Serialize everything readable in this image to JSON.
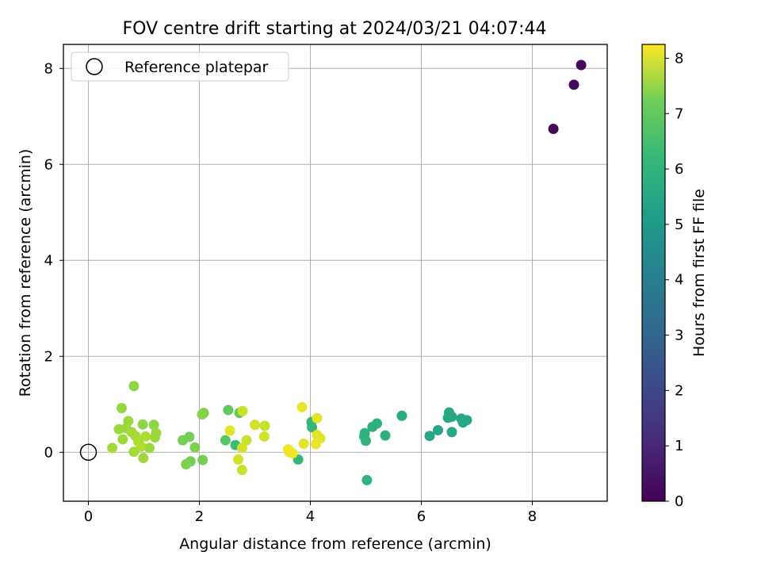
{
  "chart_data": {
    "type": "scatter",
    "title": "FOV centre drift starting at 2024/03/21 04:07:44",
    "xlabel": "Angular distance from reference (arcmin)",
    "ylabel": "Rotation from reference (arcmin)",
    "xlim": [
      -0.45,
      9.35
    ],
    "ylim": [
      -1.02,
      8.5
    ],
    "xticks": [
      0,
      2,
      4,
      6,
      8
    ],
    "yticks": [
      0,
      2,
      4,
      6,
      8
    ],
    "grid": true,
    "legend": {
      "location": "upper-left",
      "entries": [
        {
          "label": "Reference platepar",
          "marker": "open-circle"
        }
      ]
    },
    "reference_point": {
      "x": 0,
      "y": 0
    },
    "colorbar": {
      "label": "Hours from first FF file",
      "colormap": "viridis",
      "range": [
        0,
        8.25
      ],
      "ticks": [
        0,
        1,
        2,
        3,
        4,
        5,
        6,
        7,
        8
      ]
    },
    "points": [
      {
        "x": 8.88,
        "y": 8.07,
        "c": 0.2
      },
      {
        "x": 8.75,
        "y": 7.66,
        "c": 0.2
      },
      {
        "x": 8.38,
        "y": 6.74,
        "c": 0.2
      },
      {
        "x": 6.5,
        "y": 0.83,
        "c": 4.9
      },
      {
        "x": 6.55,
        "y": 0.74,
        "c": 4.9
      },
      {
        "x": 6.48,
        "y": 0.72,
        "c": 4.9
      },
      {
        "x": 6.72,
        "y": 0.7,
        "c": 4.9
      },
      {
        "x": 6.82,
        "y": 0.67,
        "c": 4.9
      },
      {
        "x": 6.75,
        "y": 0.62,
        "c": 4.9
      },
      {
        "x": 6.3,
        "y": 0.46,
        "c": 4.9
      },
      {
        "x": 6.55,
        "y": 0.42,
        "c": 4.9
      },
      {
        "x": 6.15,
        "y": 0.34,
        "c": 4.9
      },
      {
        "x": 5.65,
        "y": 0.76,
        "c": 5.1
      },
      {
        "x": 5.2,
        "y": 0.6,
        "c": 5.2
      },
      {
        "x": 5.12,
        "y": 0.53,
        "c": 5.2
      },
      {
        "x": 5.35,
        "y": 0.35,
        "c": 5.2
      },
      {
        "x": 4.98,
        "y": 0.4,
        "c": 5.3
      },
      {
        "x": 4.97,
        "y": 0.33,
        "c": 5.3
      },
      {
        "x": 5.0,
        "y": 0.24,
        "c": 5.3
      },
      {
        "x": 5.02,
        "y": -0.58,
        "c": 5.3
      },
      {
        "x": 4.02,
        "y": 0.63,
        "c": 5.5
      },
      {
        "x": 4.03,
        "y": 0.52,
        "c": 5.5
      },
      {
        "x": 3.78,
        "y": -0.15,
        "c": 5.5
      },
      {
        "x": 2.65,
        "y": 0.15,
        "c": 5.6
      },
      {
        "x": 2.52,
        "y": 0.88,
        "c": 6.2
      },
      {
        "x": 2.47,
        "y": 0.25,
        "c": 6.1
      },
      {
        "x": 2.72,
        "y": 0.82,
        "c": 6.3
      },
      {
        "x": 2.08,
        "y": 0.82,
        "c": 6.6
      },
      {
        "x": 2.05,
        "y": 0.79,
        "c": 6.7
      },
      {
        "x": 1.7,
        "y": 0.25,
        "c": 6.5
      },
      {
        "x": 1.82,
        "y": 0.32,
        "c": 6.5
      },
      {
        "x": 1.92,
        "y": 0.1,
        "c": 6.6
      },
      {
        "x": 2.06,
        "y": -0.16,
        "c": 6.5
      },
      {
        "x": 1.84,
        "y": -0.19,
        "c": 6.5
      },
      {
        "x": 1.76,
        "y": -0.25,
        "c": 6.6
      },
      {
        "x": 0.82,
        "y": 1.38,
        "c": 6.8
      },
      {
        "x": 0.6,
        "y": 0.92,
        "c": 6.9
      },
      {
        "x": 0.72,
        "y": 0.65,
        "c": 7.0
      },
      {
        "x": 0.98,
        "y": 0.58,
        "c": 6.8
      },
      {
        "x": 1.18,
        "y": 0.57,
        "c": 6.8
      },
      {
        "x": 0.55,
        "y": 0.48,
        "c": 7.0
      },
      {
        "x": 0.68,
        "y": 0.5,
        "c": 7.0
      },
      {
        "x": 0.78,
        "y": 0.42,
        "c": 7.1
      },
      {
        "x": 0.85,
        "y": 0.34,
        "c": 7.1
      },
      {
        "x": 1.03,
        "y": 0.33,
        "c": 7.2
      },
      {
        "x": 1.22,
        "y": 0.4,
        "c": 7.0
      },
      {
        "x": 1.2,
        "y": 0.31,
        "c": 7.0
      },
      {
        "x": 0.62,
        "y": 0.27,
        "c": 7.0
      },
      {
        "x": 0.9,
        "y": 0.22,
        "c": 7.2
      },
      {
        "x": 0.43,
        "y": 0.09,
        "c": 7.1
      },
      {
        "x": 0.95,
        "y": 0.12,
        "c": 7.3
      },
      {
        "x": 1.1,
        "y": 0.09,
        "c": 7.0
      },
      {
        "x": 0.82,
        "y": 0.01,
        "c": 7.1
      },
      {
        "x": 0.99,
        "y": -0.12,
        "c": 7.0
      },
      {
        "x": 2.55,
        "y": 0.45,
        "c": 7.9
      },
      {
        "x": 2.78,
        "y": 0.86,
        "c": 7.6
      },
      {
        "x": 3.0,
        "y": 0.57,
        "c": 7.7
      },
      {
        "x": 3.18,
        "y": 0.55,
        "c": 7.6
      },
      {
        "x": 3.17,
        "y": 0.33,
        "c": 7.7
      },
      {
        "x": 2.85,
        "y": 0.25,
        "c": 7.6
      },
      {
        "x": 2.77,
        "y": 0.09,
        "c": 7.7
      },
      {
        "x": 2.7,
        "y": -0.15,
        "c": 7.7
      },
      {
        "x": 2.77,
        "y": -0.37,
        "c": 7.6
      },
      {
        "x": 3.85,
        "y": 0.94,
        "c": 8.0
      },
      {
        "x": 4.12,
        "y": 0.71,
        "c": 7.9
      },
      {
        "x": 4.12,
        "y": 0.36,
        "c": 7.9
      },
      {
        "x": 4.18,
        "y": 0.29,
        "c": 7.9
      },
      {
        "x": 3.88,
        "y": 0.18,
        "c": 7.9
      },
      {
        "x": 4.1,
        "y": 0.17,
        "c": 8.0
      },
      {
        "x": 3.6,
        "y": 0.06,
        "c": 8.1
      },
      {
        "x": 3.62,
        "y": 0.0,
        "c": 8.1
      },
      {
        "x": 3.68,
        "y": -0.02,
        "c": 8.1
      }
    ]
  }
}
